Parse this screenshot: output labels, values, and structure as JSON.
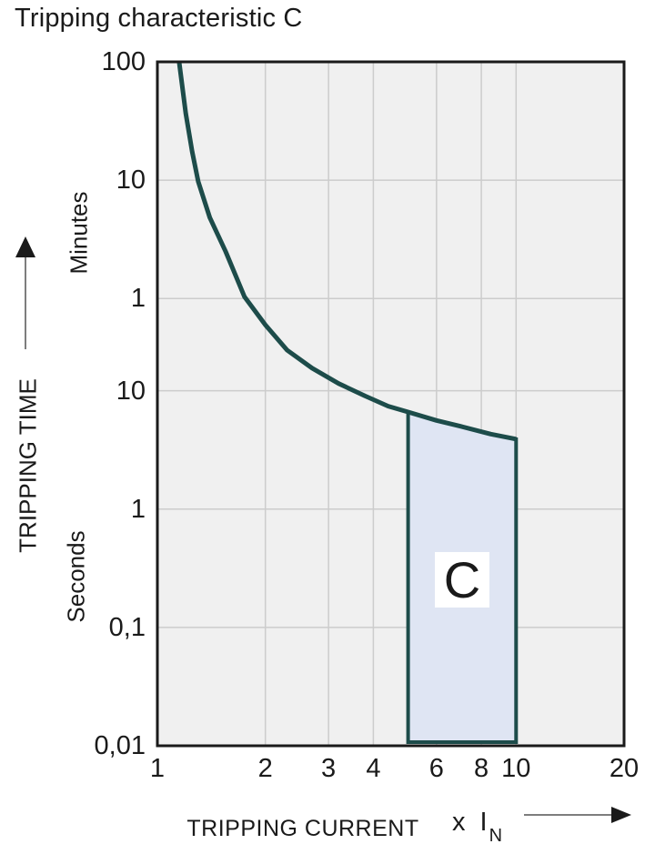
{
  "title": "Tripping characteristic C",
  "y_axis": {
    "label": "TRIPPING TIME",
    "unit_upper": "Minutes",
    "unit_lower": "Seconds",
    "ticks": [
      {
        "label": "100",
        "seconds": 6000
      },
      {
        "label": "10",
        "seconds": 600
      },
      {
        "label": "1",
        "seconds": 60
      },
      {
        "label": "10",
        "seconds": 10
      },
      {
        "label": "1",
        "seconds": 1
      },
      {
        "label": "0,1",
        "seconds": 0.1
      },
      {
        "label": "0,01",
        "seconds": 0.01
      }
    ]
  },
  "x_axis": {
    "label": "TRIPPING CURRENT",
    "multiplier": "x I",
    "multiplier_subscript": "N",
    "ticks": [
      {
        "label": "1",
        "value": 1
      },
      {
        "label": "2",
        "value": 2
      },
      {
        "label": "3",
        "value": 3
      },
      {
        "label": "4",
        "value": 4
      },
      {
        "label": "6",
        "value": 6
      },
      {
        "label": "8",
        "value": 8
      },
      {
        "label": "10",
        "value": 10
      },
      {
        "label": "20",
        "value": 20
      }
    ]
  },
  "region": {
    "label": "C",
    "x_from": 5,
    "x_to": 10,
    "bottom_seconds": 0.01
  },
  "colors": {
    "curve": "#1d4c4a",
    "region_fill": "#dfe5f3",
    "region_border": "#1d4c4a",
    "plot_bg": "#f0f0f0",
    "grid": "#cccccc",
    "frame": "#1a1a1a",
    "text": "#1a1a1a",
    "arrow_line": "#7d7d7d"
  },
  "chart_data": {
    "type": "line",
    "title": "Tripping characteristic C",
    "xlabel": "TRIPPING CURRENT (x IN)",
    "ylabel": "TRIPPING TIME",
    "x_scale": "log",
    "y_scale": "log",
    "xlim": [
      1,
      20
    ],
    "ylim_seconds": [
      0.01,
      6000
    ],
    "grid": true,
    "legend": "none",
    "y_tick_values_seconds": [
      6000,
      600,
      60,
      10,
      1,
      0.1,
      0.01
    ],
    "x_tick_values": [
      1,
      2,
      3,
      4,
      6,
      8,
      10,
      20
    ],
    "series": [
      {
        "name": "C tripping curve",
        "x_multiples_of_In": [
          1.15,
          1.2,
          1.25,
          1.3,
          1.4,
          1.55,
          1.75,
          2.0,
          2.3,
          2.7,
          3.2,
          3.8,
          4.4,
          5.0,
          6.0,
          7.0,
          8.5,
          10.0
        ],
        "t_seconds": [
          6000,
          2200,
          1050,
          585,
          290,
          150,
          62,
          36,
          22,
          15.5,
          11.5,
          9.0,
          7.4,
          6.6,
          5.6,
          5.0,
          4.3,
          3.9
        ]
      }
    ],
    "region": {
      "label": "C",
      "x_from": 5,
      "x_to": 10,
      "top_seconds_at_x_from": 6.6,
      "top_seconds_at_x_to": 3.9,
      "bottom_seconds": 0.01,
      "note": "instantaneous trip band of C characteristic, top edge follows curve"
    }
  }
}
